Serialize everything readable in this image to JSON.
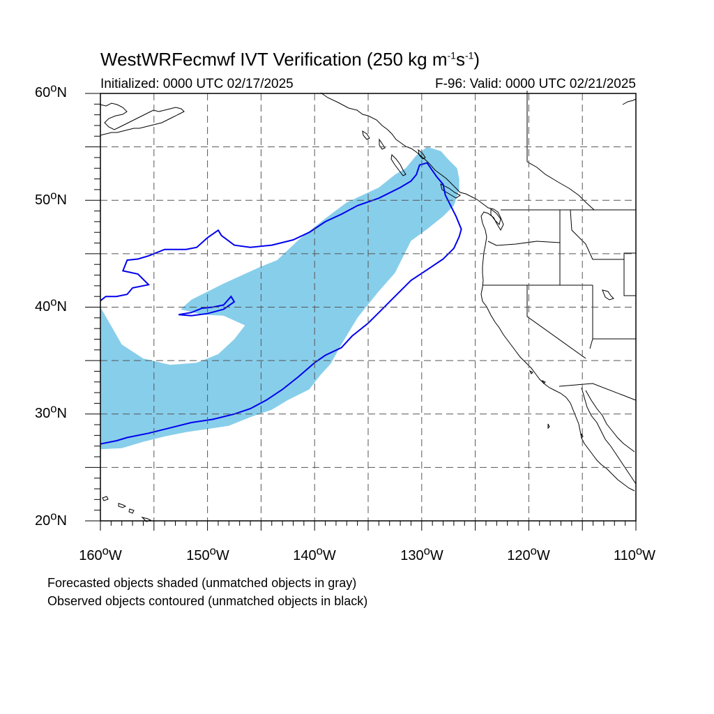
{
  "title": {
    "prefix": "WestWRFecmwf IVT Verification (250 kg m",
    "sup1": "-1",
    "mid": "s",
    "sup2": "-1",
    "suffix": ")"
  },
  "subtitle_left": "Initialized: 0000 UTC 02/17/2025",
  "subtitle_right": "F-96: Valid: 0000 UTC 02/21/2025",
  "lat_labels": [
    {
      "num": "60",
      "unit": "N"
    },
    {
      "num": "50",
      "unit": "N"
    },
    {
      "num": "40",
      "unit": "N"
    },
    {
      "num": "30",
      "unit": "N"
    },
    {
      "num": "20",
      "unit": "N"
    }
  ],
  "lon_labels": [
    {
      "num": "160",
      "unit": "W"
    },
    {
      "num": "150",
      "unit": "W"
    },
    {
      "num": "140",
      "unit": "W"
    },
    {
      "num": "130",
      "unit": "W"
    },
    {
      "num": "120",
      "unit": "W"
    },
    {
      "num": "110",
      "unit": "W"
    }
  ],
  "footnotes": {
    "line1": "Forecasted objects shaded (unmatched objects in gray)",
    "line2": "Observed objects contoured (unmatched objects in black)"
  },
  "map": {
    "extent": {
      "lon_min": -160,
      "lon_max": -110,
      "lat_min": 20,
      "lat_max": 60
    },
    "grid_spacing_deg": 5,
    "grid_lines": "dashed",
    "colors": {
      "forecast_fill": "#87ceeb",
      "observed_contour": "#0000ee",
      "coastline": "#000000",
      "grid": "#555555"
    },
    "forecast_object": {
      "polygon_lonlat": [
        [
          -160,
          40
        ],
        [
          -158,
          36.5
        ],
        [
          -156,
          35.2
        ],
        [
          -153.5,
          34.6
        ],
        [
          -151,
          34.8
        ],
        [
          -149,
          35.6
        ],
        [
          -147.5,
          37
        ],
        [
          -146.5,
          38.3
        ],
        [
          -148.5,
          39.2
        ],
        [
          -150.5,
          39.3
        ],
        [
          -152.5,
          39.8
        ],
        [
          -151.5,
          40.7
        ],
        [
          -148.5,
          42.2
        ],
        [
          -145,
          43.8
        ],
        [
          -143.5,
          44.4
        ],
        [
          -141.5,
          46.3
        ],
        [
          -139,
          48.3
        ],
        [
          -137,
          49.8
        ],
        [
          -134,
          51.2
        ],
        [
          -132.5,
          52.4
        ],
        [
          -131.5,
          53
        ],
        [
          -130.5,
          54.2
        ],
        [
          -129.5,
          55
        ],
        [
          -128.2,
          54.6
        ],
        [
          -127.5,
          53.8
        ],
        [
          -126.7,
          53
        ],
        [
          -126.5,
          52
        ],
        [
          -126.5,
          51
        ],
        [
          -127,
          49.5
        ],
        [
          -128,
          48.5
        ],
        [
          -129.5,
          47.3
        ],
        [
          -131,
          46.2
        ],
        [
          -131.5,
          45.2
        ],
        [
          -132.5,
          43.2
        ],
        [
          -134,
          41.5
        ],
        [
          -136,
          39
        ],
        [
          -137.5,
          36.5
        ],
        [
          -138.5,
          34.7
        ],
        [
          -139.5,
          33.6
        ],
        [
          -140.5,
          32.3
        ],
        [
          -142.5,
          31.3
        ],
        [
          -144,
          30.4
        ],
        [
          -146,
          29.7
        ],
        [
          -148,
          28.9
        ],
        [
          -150,
          28.6
        ],
        [
          -152,
          28.3
        ],
        [
          -154,
          27.9
        ],
        [
          -156,
          27.4
        ],
        [
          -158,
          26.8
        ],
        [
          -160,
          26.7
        ]
      ]
    },
    "observed_object": {
      "contour_lonlat": [
        [
          -160,
          27.2
        ],
        [
          -158.5,
          27.5
        ],
        [
          -157.5,
          27.8
        ],
        [
          -155.5,
          28.2
        ],
        [
          -153.5,
          28.7
        ],
        [
          -151.5,
          29.2
        ],
        [
          -149.5,
          29.5
        ],
        [
          -147.5,
          30
        ],
        [
          -146,
          30.5
        ],
        [
          -144.5,
          31.3
        ],
        [
          -143,
          32.3
        ],
        [
          -141.5,
          33.5
        ],
        [
          -140,
          34.8
        ],
        [
          -139,
          35.5
        ],
        [
          -137.5,
          36.2
        ],
        [
          -136.5,
          37.3
        ],
        [
          -135,
          38.5
        ],
        [
          -134,
          39.5
        ],
        [
          -133,
          40.5
        ],
        [
          -131,
          42.5
        ],
        [
          -129.5,
          43.5
        ],
        [
          -128,
          44.5
        ],
        [
          -127,
          45.5
        ],
        [
          -126.5,
          46.6
        ],
        [
          -126.3,
          47.3
        ],
        [
          -126.8,
          48.5
        ],
        [
          -127.3,
          49.5
        ],
        [
          -127.8,
          50.5
        ],
        [
          -128,
          51.5
        ],
        [
          -128.6,
          52.2
        ],
        [
          -129.5,
          53.5
        ],
        [
          -130.2,
          53.3
        ],
        [
          -130.5,
          52.4
        ],
        [
          -131,
          51.8
        ],
        [
          -132,
          51.2
        ],
        [
          -134,
          50.2
        ],
        [
          -136,
          49.5
        ],
        [
          -137.5,
          48.7
        ],
        [
          -139,
          48
        ],
        [
          -140.5,
          47
        ],
        [
          -142,
          46.3
        ],
        [
          -144,
          45.8
        ],
        [
          -146,
          45.6
        ],
        [
          -147.5,
          45.8
        ],
        [
          -148.7,
          46.7
        ],
        [
          -149,
          47.2
        ],
        [
          -150,
          46.5
        ],
        [
          -151,
          45.6
        ],
        [
          -152,
          45.4
        ],
        [
          -154,
          45.4
        ],
        [
          -155.5,
          44.8
        ],
        [
          -156.5,
          44.5
        ],
        [
          -157.5,
          44.4
        ],
        [
          -157.9,
          43.4
        ],
        [
          -156.5,
          43.1
        ],
        [
          -155.5,
          42.1
        ],
        [
          -157,
          41.8
        ],
        [
          -157.5,
          41.2
        ],
        [
          -158.5,
          41
        ],
        [
          -159.5,
          41
        ],
        [
          -160,
          40.6
        ]
      ],
      "inner_loop_lonlat": [
        [
          -152.7,
          39.3
        ],
        [
          -151.5,
          39.2
        ],
        [
          -150,
          39.4
        ],
        [
          -148.5,
          39.8
        ],
        [
          -147.5,
          40.5
        ],
        [
          -147.8,
          41
        ],
        [
          -148.5,
          40.2
        ],
        [
          -149.5,
          40
        ],
        [
          -150.5,
          39.9
        ],
        [
          -151.5,
          39.5
        ]
      ]
    }
  }
}
